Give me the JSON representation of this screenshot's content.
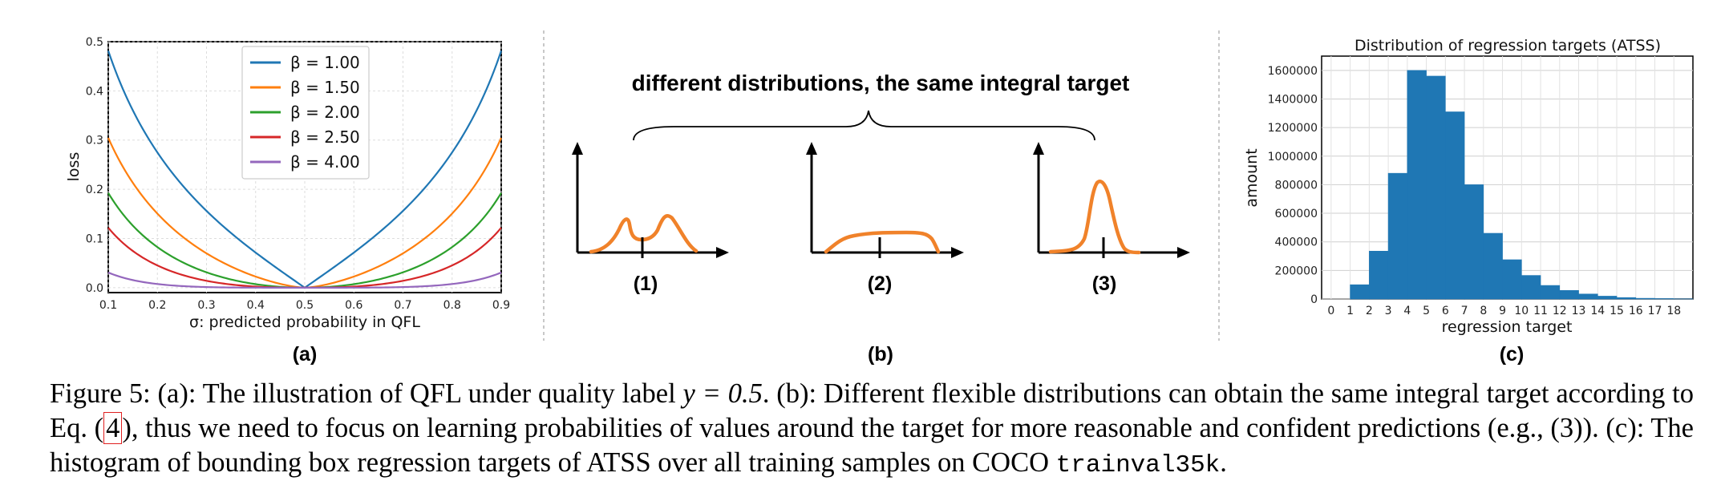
{
  "chart_data": [
    {
      "type": "line",
      "panel_label": "(a)",
      "xlabel": "σ: predicted probability in QFL",
      "ylabel": "loss",
      "xlim": [
        0.1,
        0.9
      ],
      "ylim": [
        -0.01,
        0.5
      ],
      "x_ticks": [
        "0.1",
        "0.2",
        "0.3",
        "0.4",
        "0.5",
        "0.6",
        "0.7",
        "0.8",
        "0.9"
      ],
      "y_ticks": [
        "0.0",
        "0.1",
        "0.2",
        "0.3",
        "0.4",
        "0.5"
      ],
      "grid": true,
      "legend_position": "top-center",
      "quality_label_y": 0.5,
      "series": [
        {
          "name": "β = 1.00",
          "beta": 1.0,
          "color": "#1f77b4"
        },
        {
          "name": "β = 1.50",
          "beta": 1.5,
          "color": "#ff7f0e"
        },
        {
          "name": "β = 2.00",
          "beta": 2.0,
          "color": "#2ca02c"
        },
        {
          "name": "β = 2.50",
          "beta": 2.5,
          "color": "#d62728"
        },
        {
          "name": "β = 4.00",
          "beta": 4.0,
          "color": "#9467bd"
        }
      ]
    },
    {
      "type": "bar",
      "panel_label": "(c)",
      "title": "Distribution of regression targets (ATSS)",
      "xlabel": "regression target",
      "ylabel": "amount",
      "categories": [
        "0",
        "1",
        "2",
        "3",
        "4",
        "5",
        "6",
        "7",
        "8",
        "9",
        "10",
        "11",
        "12",
        "13",
        "14",
        "15",
        "16",
        "17",
        "18"
      ],
      "values": [
        0,
        100000,
        335000,
        880000,
        1600000,
        1560000,
        1310000,
        800000,
        460000,
        275000,
        165000,
        95000,
        60000,
        35000,
        20000,
        10000,
        5000,
        3000,
        1000
      ],
      "ylim": [
        0,
        1700000
      ],
      "y_ticks": [
        "0",
        "200000",
        "400000",
        "600000",
        "800000",
        "1000000",
        "1200000",
        "1400000",
        "1600000"
      ],
      "bar_color": "#1f77b4",
      "grid": true
    }
  ],
  "diagram": {
    "panel_label": "(b)",
    "heading": "different distributions, the same integral target",
    "sub_labels": [
      "(1)",
      "(2)",
      "(3)"
    ],
    "curve_color": "#f0822a"
  },
  "caption": {
    "p1": "Figure 5: (a): The illustration of QFL under quality label ",
    "math": "y = 0.5",
    "p2": ". (b): Different flexible distributions can obtain the same integral target according to Eq. (",
    "eqref": "4",
    "p3": "), thus we need to focus on learning probabilities of values around the target for more reasonable and confident predictions (e.g., (3)). (c): The histogram of bounding box regression targets of ATSS over all training samples on COCO ",
    "dataset": "trainval35k",
    "p4": "."
  }
}
